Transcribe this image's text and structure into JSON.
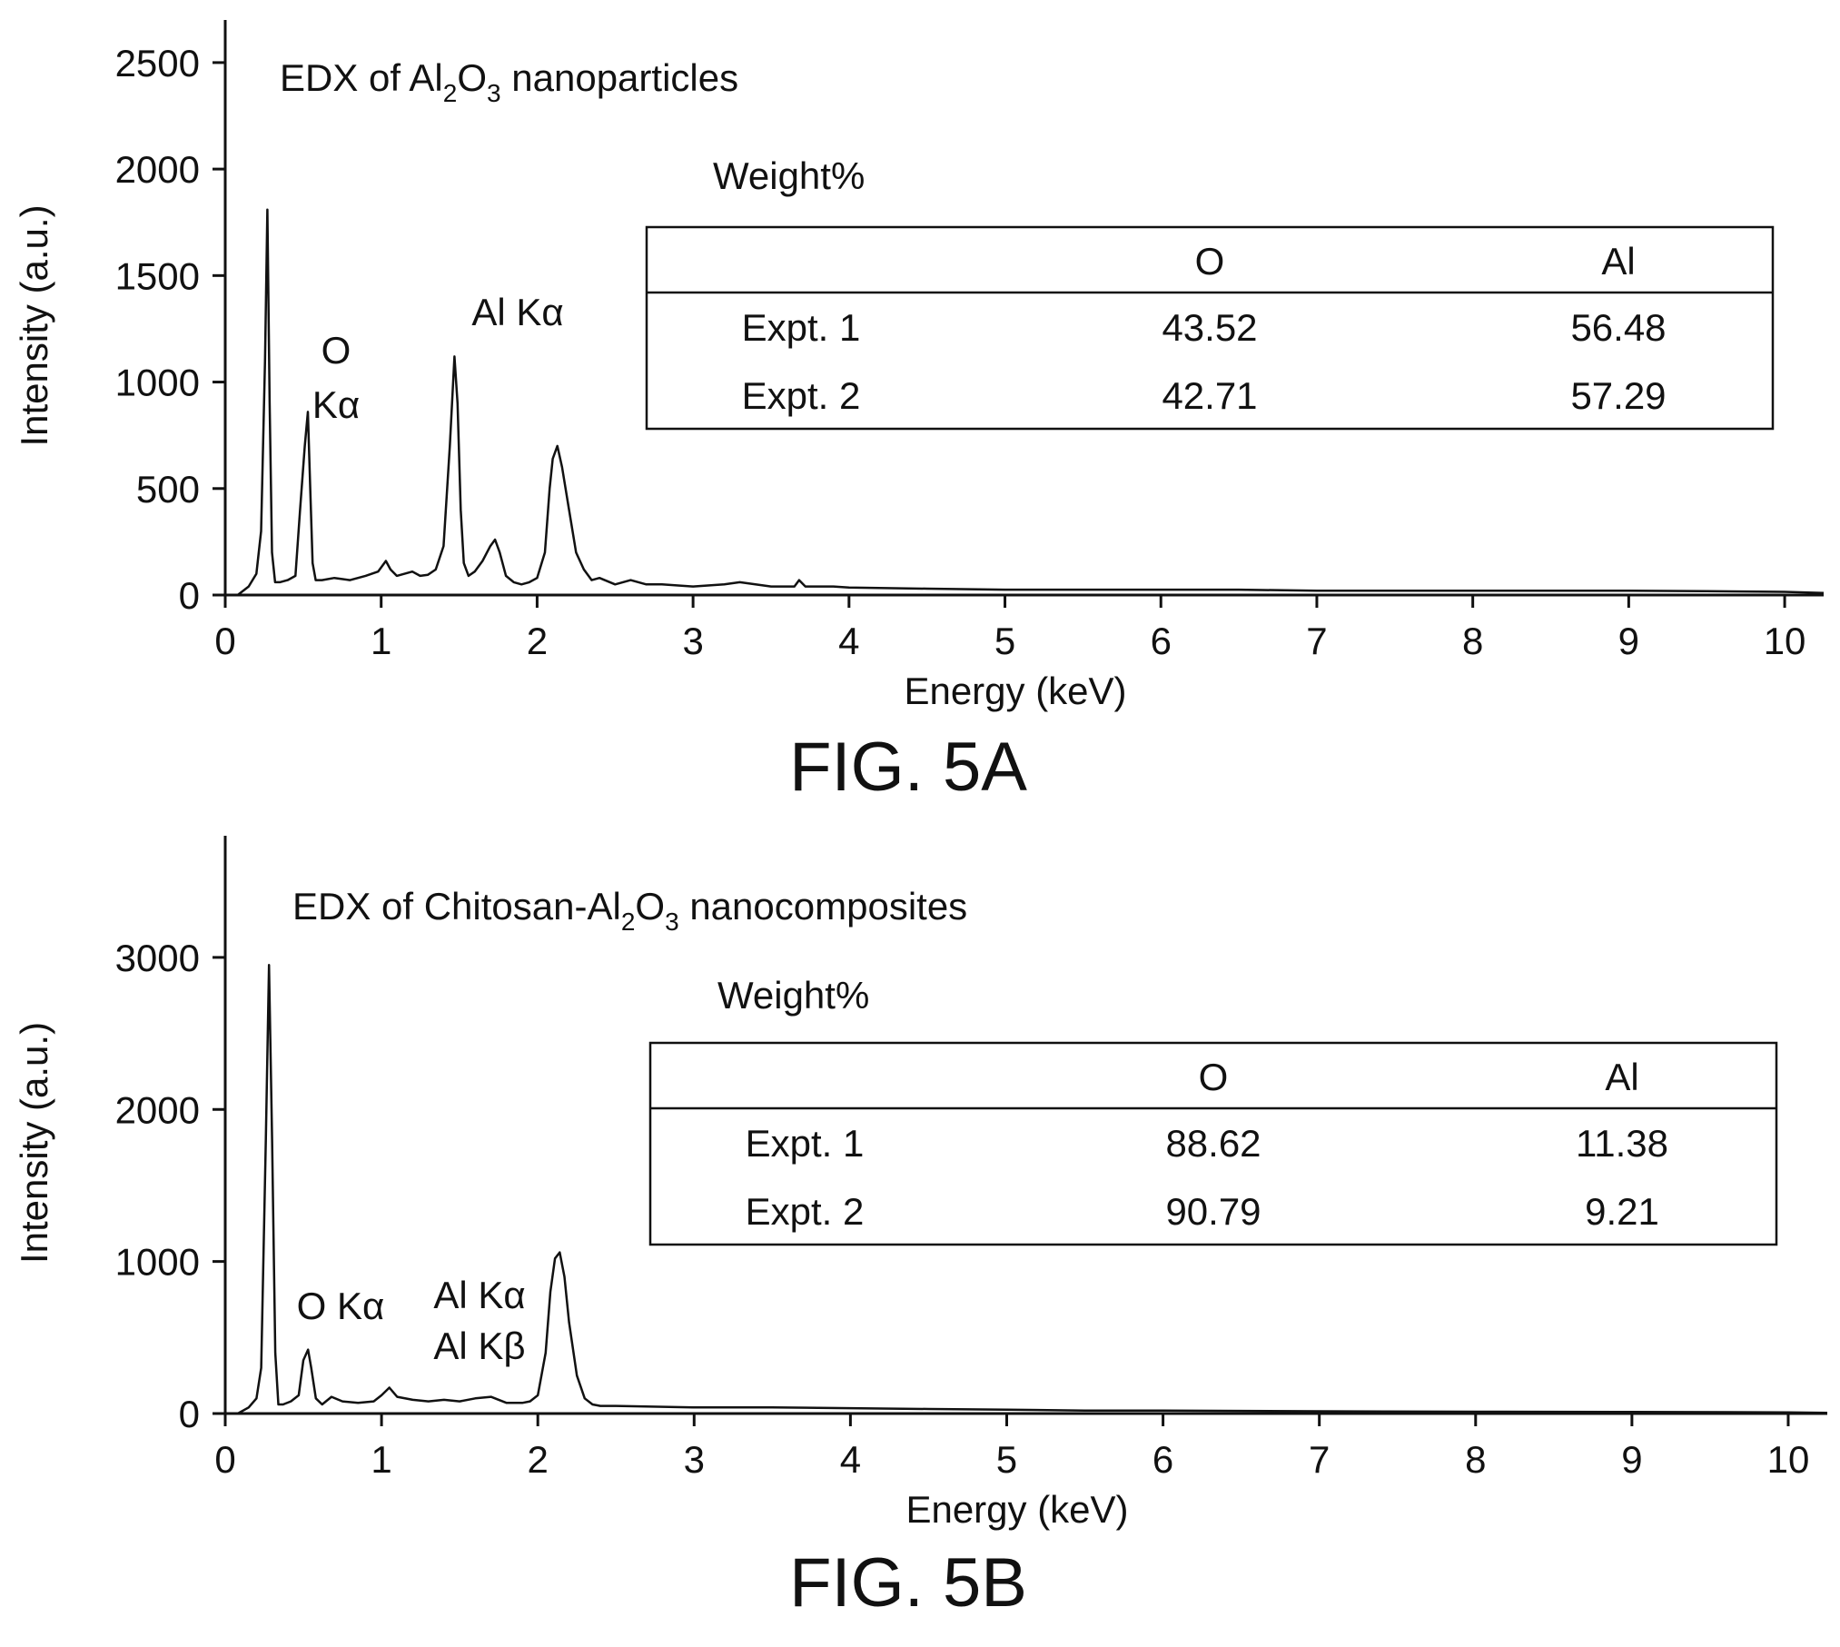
{
  "chart_data": [
    {
      "type": "line",
      "title": "EDX of Al₂O₃ nanoparticles",
      "title_parts": [
        "EDX of Al",
        "2",
        "O",
        "3",
        " nanoparticles"
      ],
      "figure_label": "FIG. 5A",
      "xlabel": "Energy (keV)",
      "ylabel": "Intensity (a.u.)",
      "xlim": [
        0,
        10.25
      ],
      "ylim": [
        0,
        2700
      ],
      "xticks": [
        0,
        1,
        2,
        3,
        4,
        5,
        6,
        7,
        8,
        9,
        10
      ],
      "yticks": [
        0,
        500,
        1000,
        1500,
        2000,
        2500
      ],
      "grid": false,
      "series": [
        {
          "x": [
            0.08,
            0.15,
            0.2,
            0.23,
            0.255,
            0.27,
            0.285,
            0.3,
            0.32,
            0.35,
            0.4,
            0.45,
            0.48,
            0.51,
            0.53,
            0.545,
            0.56,
            0.58,
            0.62,
            0.7,
            0.8,
            0.9,
            0.98,
            1.03,
            1.06,
            1.1,
            1.15,
            1.2,
            1.25,
            1.3,
            1.35,
            1.4,
            1.44,
            1.47,
            1.49,
            1.51,
            1.53,
            1.56,
            1.6,
            1.65,
            1.7,
            1.73,
            1.76,
            1.8,
            1.85,
            1.9,
            1.95,
            2.0,
            2.05,
            2.08,
            2.1,
            2.13,
            2.16,
            2.2,
            2.25,
            2.3,
            2.35,
            2.4,
            2.5,
            2.6,
            2.7,
            2.8,
            3.0,
            3.2,
            3.3,
            3.5,
            3.65,
            3.68,
            3.72,
            3.9,
            4.0,
            4.5,
            5.0,
            5.5,
            6.0,
            6.5,
            7.0,
            7.5,
            8.0,
            8.5,
            9.0,
            9.5,
            10.0,
            10.25
          ],
          "y": [
            0,
            40,
            100,
            300,
            1100,
            1810,
            900,
            200,
            60,
            60,
            70,
            90,
            400,
            700,
            860,
            500,
            150,
            70,
            70,
            80,
            70,
            90,
            110,
            160,
            120,
            90,
            100,
            110,
            90,
            95,
            120,
            230,
            700,
            1120,
            900,
            400,
            150,
            90,
            110,
            160,
            230,
            260,
            200,
            90,
            60,
            50,
            60,
            80,
            200,
            500,
            640,
            700,
            600,
            420,
            200,
            120,
            70,
            80,
            50,
            70,
            50,
            50,
            40,
            50,
            60,
            40,
            40,
            70,
            40,
            40,
            35,
            30,
            25,
            25,
            25,
            25,
            20,
            20,
            20,
            20,
            20,
            18,
            15,
            10
          ]
        }
      ],
      "annotations": [
        {
          "text_lines": [
            "O",
            "Kα"
          ],
          "x": 0.53,
          "y": 1000
        },
        {
          "text_lines": [
            "Al Kα"
          ],
          "x": 1.49,
          "y": 1250
        }
      ],
      "inset_table": {
        "title": "Weight%",
        "columns": [
          "",
          "O",
          "Al"
        ],
        "rows": [
          [
            "Expt. 1",
            "43.52",
            "56.48"
          ],
          [
            "Expt. 2",
            "42.71",
            "57.29"
          ]
        ]
      }
    },
    {
      "type": "line",
      "title": "EDX of Chitosan-Al₂O₃ nanocomposites",
      "title_parts": [
        "EDX of Chitosan-Al",
        "2",
        "O",
        "3",
        " nanocomposites"
      ],
      "figure_label": "FIG. 5B",
      "xlabel": "Energy (keV)",
      "ylabel": "Intensity (a.u.)",
      "xlim": [
        0,
        10.25
      ],
      "ylim": [
        0,
        3800
      ],
      "xticks": [
        0,
        1,
        2,
        3,
        4,
        5,
        6,
        7,
        8,
        9,
        10
      ],
      "yticks": [
        0,
        1000,
        2000,
        3000
      ],
      "grid": false,
      "series": [
        {
          "x": [
            0.08,
            0.15,
            0.2,
            0.23,
            0.26,
            0.28,
            0.3,
            0.32,
            0.34,
            0.37,
            0.42,
            0.47,
            0.5,
            0.53,
            0.55,
            0.58,
            0.62,
            0.68,
            0.75,
            0.85,
            0.95,
            1.0,
            1.05,
            1.1,
            1.2,
            1.3,
            1.4,
            1.5,
            1.6,
            1.7,
            1.75,
            1.8,
            1.9,
            1.95,
            2.0,
            2.05,
            2.08,
            2.11,
            2.14,
            2.17,
            2.2,
            2.25,
            2.3,
            2.35,
            2.4,
            2.5,
            3.0,
            3.5,
            4.0,
            4.5,
            5.0,
            5.5,
            6.0,
            7.0,
            8.0,
            9.0,
            10.0,
            10.25
          ],
          "y": [
            0,
            40,
            100,
            300,
            1800,
            2950,
            1800,
            400,
            60,
            60,
            80,
            120,
            350,
            420,
            300,
            100,
            60,
            110,
            80,
            70,
            80,
            120,
            170,
            110,
            90,
            80,
            90,
            80,
            100,
            110,
            90,
            70,
            70,
            80,
            120,
            400,
            800,
            1020,
            1060,
            900,
            600,
            250,
            100,
            60,
            50,
            50,
            40,
            40,
            35,
            30,
            25,
            20,
            20,
            15,
            12,
            10,
            8,
            5
          ]
        }
      ],
      "annotations": [
        {
          "text_lines": [
            "O Kα"
          ],
          "x": 0.53,
          "y": 480
        },
        {
          "text_lines": [
            "Al Kα",
            "Al Kβ"
          ],
          "x": 1.6,
          "y": 300
        }
      ],
      "inset_table": {
        "title": "Weight%",
        "columns": [
          "",
          "O",
          "Al"
        ],
        "rows": [
          [
            "Expt. 1",
            "88.62",
            "11.38"
          ],
          [
            "Expt. 2",
            "90.79",
            "9.21"
          ]
        ]
      }
    }
  ]
}
